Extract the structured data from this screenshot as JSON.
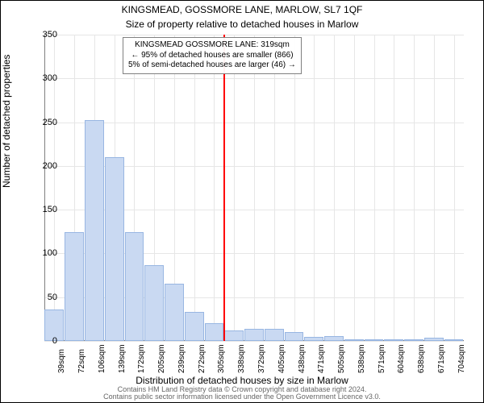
{
  "title_line1": "KINGSMEAD, GOSSMORE LANE, MARLOW, SL7 1QF",
  "title_line2": "Size of property relative to detached houses in Marlow",
  "y_axis_label": "Number of detached properties",
  "x_axis_label": "Distribution of detached houses by size in Marlow",
  "footer_line1": "Contains HM Land Registry data © Crown copyright and database right 2024.",
  "footer_line2": "Contains public sector information licensed under the Open Government Licence v3.0.",
  "annotation_line1": "KINGSMEAD GOSSMORE LANE: 319sqm",
  "annotation_line2": "← 95% of detached houses are smaller (866)",
  "annotation_line3": "5% of semi-detached houses are larger (46) →",
  "chart": {
    "type": "bar",
    "ylim": [
      0,
      350
    ],
    "yticks": [
      0,
      50,
      100,
      150,
      200,
      250,
      300,
      350
    ],
    "categories": [
      "39sqm",
      "72sqm",
      "106sqm",
      "139sqm",
      "172sqm",
      "205sqm",
      "239sqm",
      "272sqm",
      "305sqm",
      "338sqm",
      "372sqm",
      "405sqm",
      "438sqm",
      "471sqm",
      "505sqm",
      "538sqm",
      "571sqm",
      "604sqm",
      "638sqm",
      "671sqm",
      "704sqm"
    ],
    "values": [
      36,
      124,
      252,
      210,
      124,
      87,
      65,
      33,
      20,
      12,
      14,
      14,
      10,
      5,
      6,
      2,
      0,
      0,
      2,
      4,
      1
    ],
    "bar_color": "#c9d9f2",
    "bar_border": "#98b6e2",
    "marker_color": "#ff0000",
    "marker_category_index": 8.5,
    "grid_color": "#e6e6e6",
    "axis_color": "#808080",
    "background": "#ffffff",
    "bar_width_ratio": 0.96,
    "title_fontsize": 12,
    "label_fontsize": 12,
    "tick_fontsize": 11,
    "xtick_fontsize": 10,
    "xtick_rotation": -90
  }
}
